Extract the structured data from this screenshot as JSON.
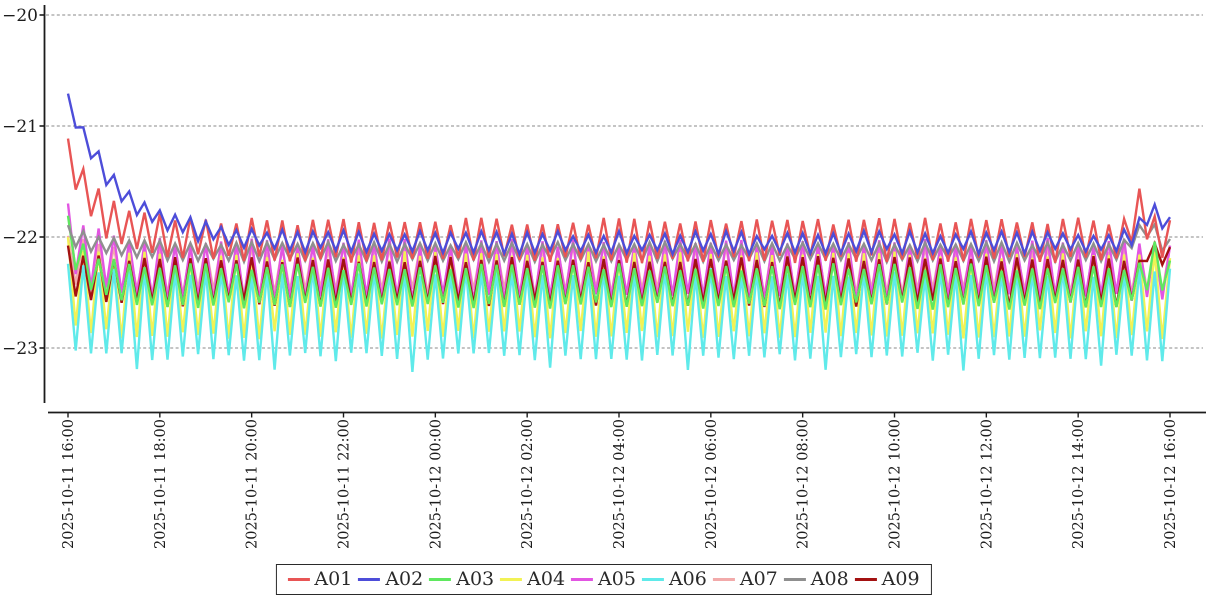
{
  "chart_data": {
    "type": "line",
    "title": "",
    "points_count": 145,
    "sampling_minutes": 10,
    "oscillation_period_minutes": 20,
    "x_axis": {
      "start": "2025-10-11 16:00",
      "end": "2025-10-12 16:00",
      "tick_interval_hours": 2,
      "tick_labels": [
        "2025-10-11 16:00",
        "2025-10-11 18:00",
        "2025-10-11 20:00",
        "2025-10-11 22:00",
        "2025-10-12 00:00",
        "2025-10-12 02:00",
        "2025-10-12 04:00",
        "2025-10-12 06:00",
        "2025-10-12 08:00",
        "2025-10-12 10:00",
        "2025-10-12 12:00",
        "2025-10-12 14:00",
        "2025-10-12 16:00"
      ],
      "label_rotation_deg": 90
    },
    "y_axis": {
      "tick_values": [
        -20,
        -21,
        -22,
        -23
      ],
      "tick_labels": [
        "−20",
        "−21",
        "−22",
        "−23"
      ],
      "ylim": [
        -23.6,
        -19.9
      ],
      "grid": "dashed-horizontal"
    },
    "legend": {
      "position": "bottom-center",
      "border": true
    },
    "series": [
      {
        "name": "A01",
        "color": "#e85555",
        "initial_value": -21.1,
        "decay_tau_points": 4,
        "steady_high": -21.86,
        "steady_low": -22.2,
        "noise": 0.035,
        "end_spike": {
          "at": 140,
          "amp": 0.28,
          "width": 0.9
        },
        "seed": 3
      },
      {
        "name": "A02",
        "color": "#4d4dd9",
        "initial_value": -20.7,
        "decay_tau_points": 7,
        "steady_high": -21.97,
        "steady_low": -22.13,
        "noise": 0.025,
        "end_spike": {
          "at": 142,
          "amp": 0.27,
          "width": 1.8
        },
        "seed": 5
      },
      {
        "name": "A03",
        "color": "#5fe85f",
        "initial_value": -21.8,
        "decay_tau_points": 2.5,
        "steady_high": -22.27,
        "steady_low": -22.62,
        "noise": 0.035,
        "end_spike": {
          "at": 142,
          "amp": 0.2,
          "width": 1.3
        },
        "seed": 7
      },
      {
        "name": "A04",
        "color": "#f2f255",
        "initial_value": -22.0,
        "decay_tau_points": 2,
        "steady_high": -22.17,
        "steady_low": -22.88,
        "noise": 0.04,
        "seed": 11
      },
      {
        "name": "A05",
        "color": "#e255e2",
        "initial_value": -21.7,
        "decay_tau_points": 3,
        "steady_high": -22.05,
        "steady_low": -22.55,
        "noise": 0.04,
        "seed": 13
      },
      {
        "name": "A06",
        "color": "#5feaea",
        "initial_value": -22.25,
        "decay_tau_points": 2,
        "steady_high": -22.32,
        "steady_low": -23.08,
        "noise": 0.04,
        "deep_dip": {
          "every": 18,
          "phase": 9,
          "amp": 0.1
        },
        "seed": 17
      },
      {
        "name": "A07",
        "color": "#f2aaaa",
        "initial_value": -22.0,
        "decay_tau_points": 3,
        "steady_high": -22.1,
        "steady_low": -22.5,
        "noise": 0.035,
        "seed": 19
      },
      {
        "name": "A08",
        "color": "#8f8f8f",
        "initial_value": -21.9,
        "decay_tau_points": 5,
        "steady_high": -22.06,
        "steady_low": -22.21,
        "noise": 0.015,
        "end_spike": {
          "at": 141,
          "amp": 0.22,
          "width": 1.6
        },
        "seed": 23
      },
      {
        "name": "A09",
        "color": "#a31111",
        "initial_value": -22.1,
        "decay_tau_points": 2,
        "steady_high": -22.2,
        "steady_low": -22.6,
        "noise": 0.03,
        "end_rise": {
          "from": 141,
          "even": 0.12,
          "odd": 0.38
        },
        "seed": 29
      }
    ],
    "draw_order": [
      "A07",
      "A05",
      "A04",
      "A09",
      "A06",
      "A03",
      "A08",
      "A01",
      "A02"
    ]
  }
}
